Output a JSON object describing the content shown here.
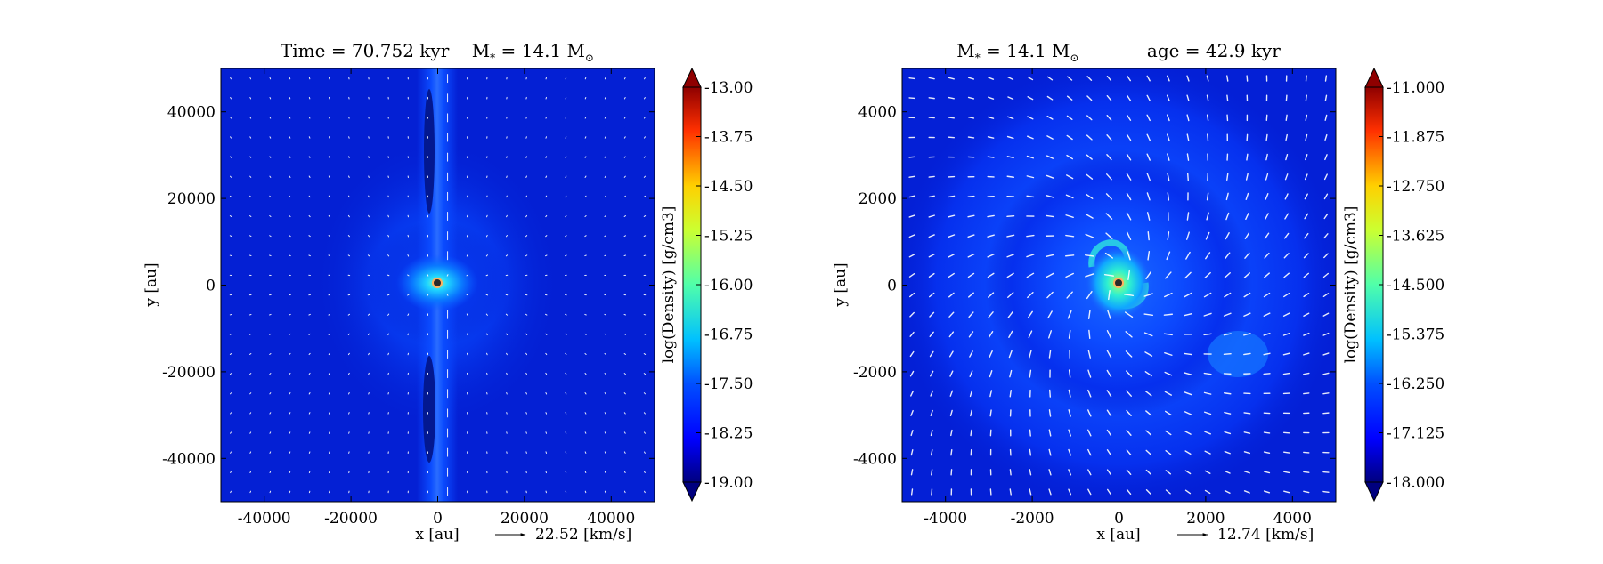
{
  "chart_data": [
    {
      "type": "heatmap",
      "title_parts": {
        "time": "Time = 70.752 kyr",
        "mass": "M",
        "mass_sub": "*",
        "mass_eq": " = 14.1 M",
        "mass_unit_sub": "⊙"
      },
      "title": "Time = 70.752 kyr   M* = 14.1 M⊙",
      "xlabel": "x [au]",
      "ylabel": "y [au]",
      "xlim": [
        -50000,
        50000
      ],
      "ylim": [
        -50000,
        50000
      ],
      "xticks": [
        -40000,
        -20000,
        0,
        20000,
        40000
      ],
      "yticks": [
        -40000,
        -20000,
        0,
        20000,
        40000
      ],
      "xtick_labels": [
        "-40000",
        "-20000",
        "0",
        "20000",
        "40000"
      ],
      "ytick_labels": [
        "-40000",
        "-20000",
        "0",
        "20000",
        "40000"
      ],
      "quiver_key": "22.52 [km/s]",
      "structure": "bipolar outflow along y-axis, flattened envelope",
      "colorbar": {
        "label": "log(Density) [g/cm3]",
        "range": [
          -19.0,
          -13.0
        ],
        "ticks": [
          -13.0,
          -13.75,
          -14.5,
          -15.25,
          -16.0,
          -16.75,
          -17.5,
          -18.25,
          -19.0
        ],
        "tick_labels": [
          "-13.00",
          "-13.75",
          "-14.50",
          "-15.25",
          "-16.00",
          "-16.75",
          "-17.50",
          "-18.25",
          "-19.00"
        ],
        "colormap": "jet"
      }
    },
    {
      "type": "heatmap",
      "title_parts": {
        "mass": "M",
        "mass_sub": "*",
        "mass_eq": " = 14.1 M",
        "mass_unit_sub": "⊙",
        "age": "age = 42.9 kyr"
      },
      "title": "M* = 14.1 M⊙   age = 42.9 kyr",
      "xlabel": "x [au]",
      "ylabel": "y [au]",
      "xlim": [
        -5000,
        5000
      ],
      "ylim": [
        -5000,
        5000
      ],
      "xticks": [
        -4000,
        -2000,
        0,
        2000,
        4000
      ],
      "yticks": [
        -4000,
        -2000,
        0,
        2000,
        4000
      ],
      "xtick_labels": [
        "-4000",
        "-2000",
        "0",
        "2000",
        "4000"
      ],
      "ytick_labels": [
        "-4000",
        "-2000",
        "0",
        "2000",
        "4000"
      ],
      "quiver_key": "12.74 [km/s]",
      "structure": "rotating disk with spiral arms",
      "colorbar": {
        "label": "log(Density) [g/cm3]",
        "range": [
          -18.0,
          -11.0
        ],
        "ticks": [
          -11.0,
          -11.875,
          -12.75,
          -13.625,
          -14.5,
          -15.375,
          -16.25,
          -17.125,
          -18.0
        ],
        "tick_labels": [
          "-11.000",
          "-11.875",
          "-12.750",
          "-13.625",
          "-14.500",
          "-15.375",
          "-16.250",
          "-17.125",
          "-18.000"
        ],
        "colormap": "jet"
      }
    }
  ]
}
